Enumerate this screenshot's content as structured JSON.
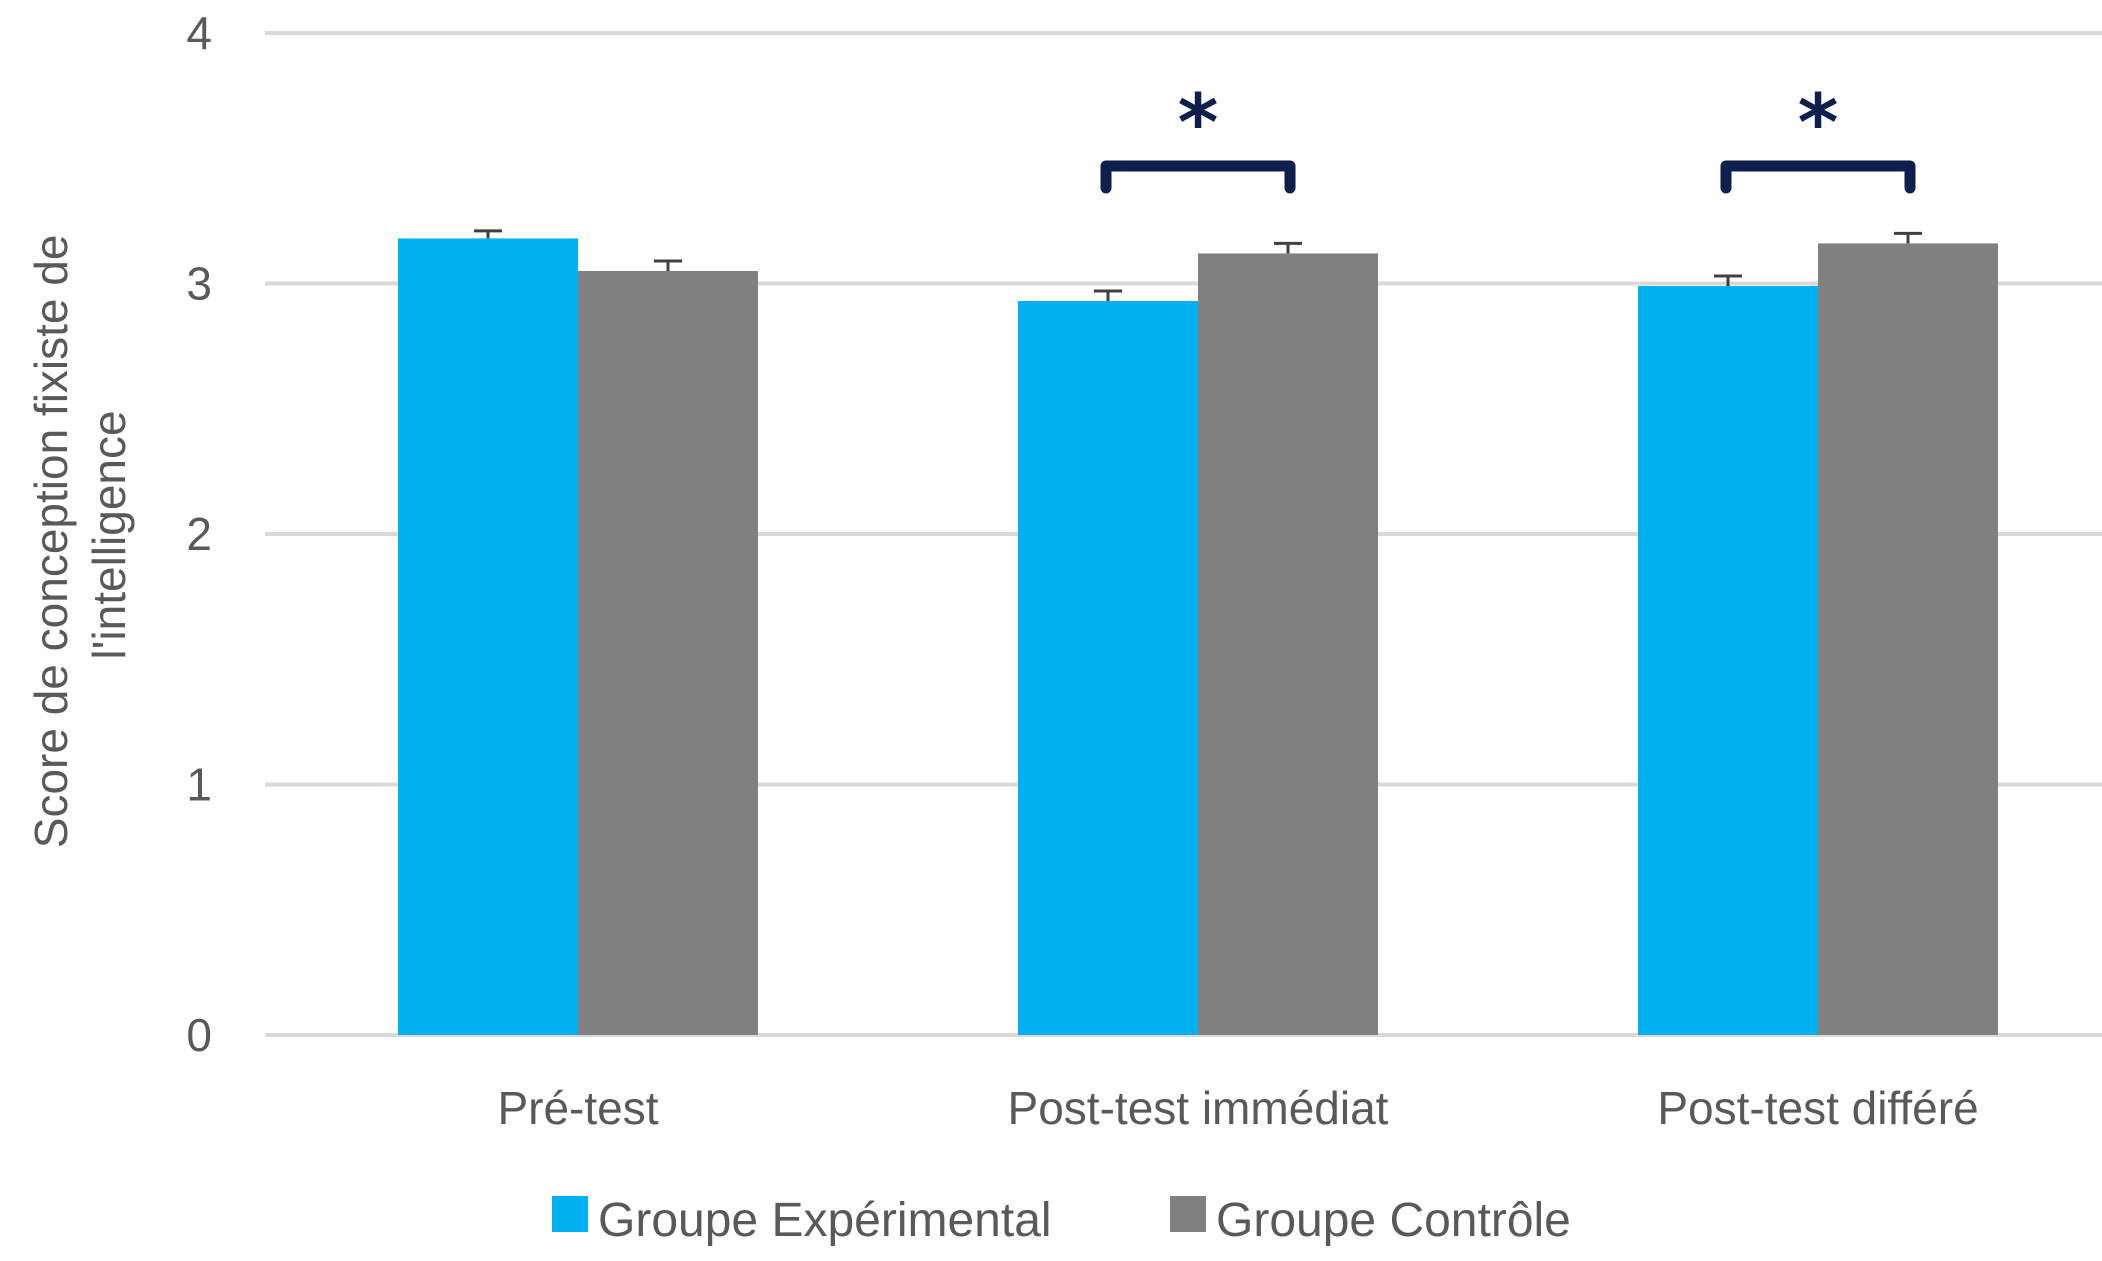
{
  "chart_data": {
    "type": "bar",
    "categories": [
      "Pré-test",
      "Post-test immédiat",
      "Post-test différé"
    ],
    "series": [
      {
        "name": "Groupe Expérimental",
        "color": "#00b0f0",
        "values": [
          3.18,
          2.93,
          2.99
        ],
        "errors": [
          0.03,
          0.04,
          0.04
        ]
      },
      {
        "name": "Groupe Contrôle",
        "color": "#808080",
        "values": [
          3.05,
          3.12,
          3.16
        ],
        "errors": [
          0.04,
          0.04,
          0.04
        ]
      }
    ],
    "ylabel": "Score de conception fixiste de l'intelligence",
    "ylabel_lines": [
      "Score de conception fixiste de",
      "l'intelligence"
    ],
    "xlabel": "",
    "ylim": [
      0,
      4
    ],
    "yticks": [
      "0",
      "1",
      "2",
      "3",
      "4"
    ],
    "grid": true,
    "legend_position": "bottom",
    "significance": [
      {
        "category": "Post-test immédiat",
        "label": "*"
      },
      {
        "category": "Post-test différé",
        "label": "*"
      }
    ],
    "colors": {
      "bracket": "#0d1f4a",
      "grid": "#d9d9d9",
      "error_bar": "#404040"
    }
  }
}
